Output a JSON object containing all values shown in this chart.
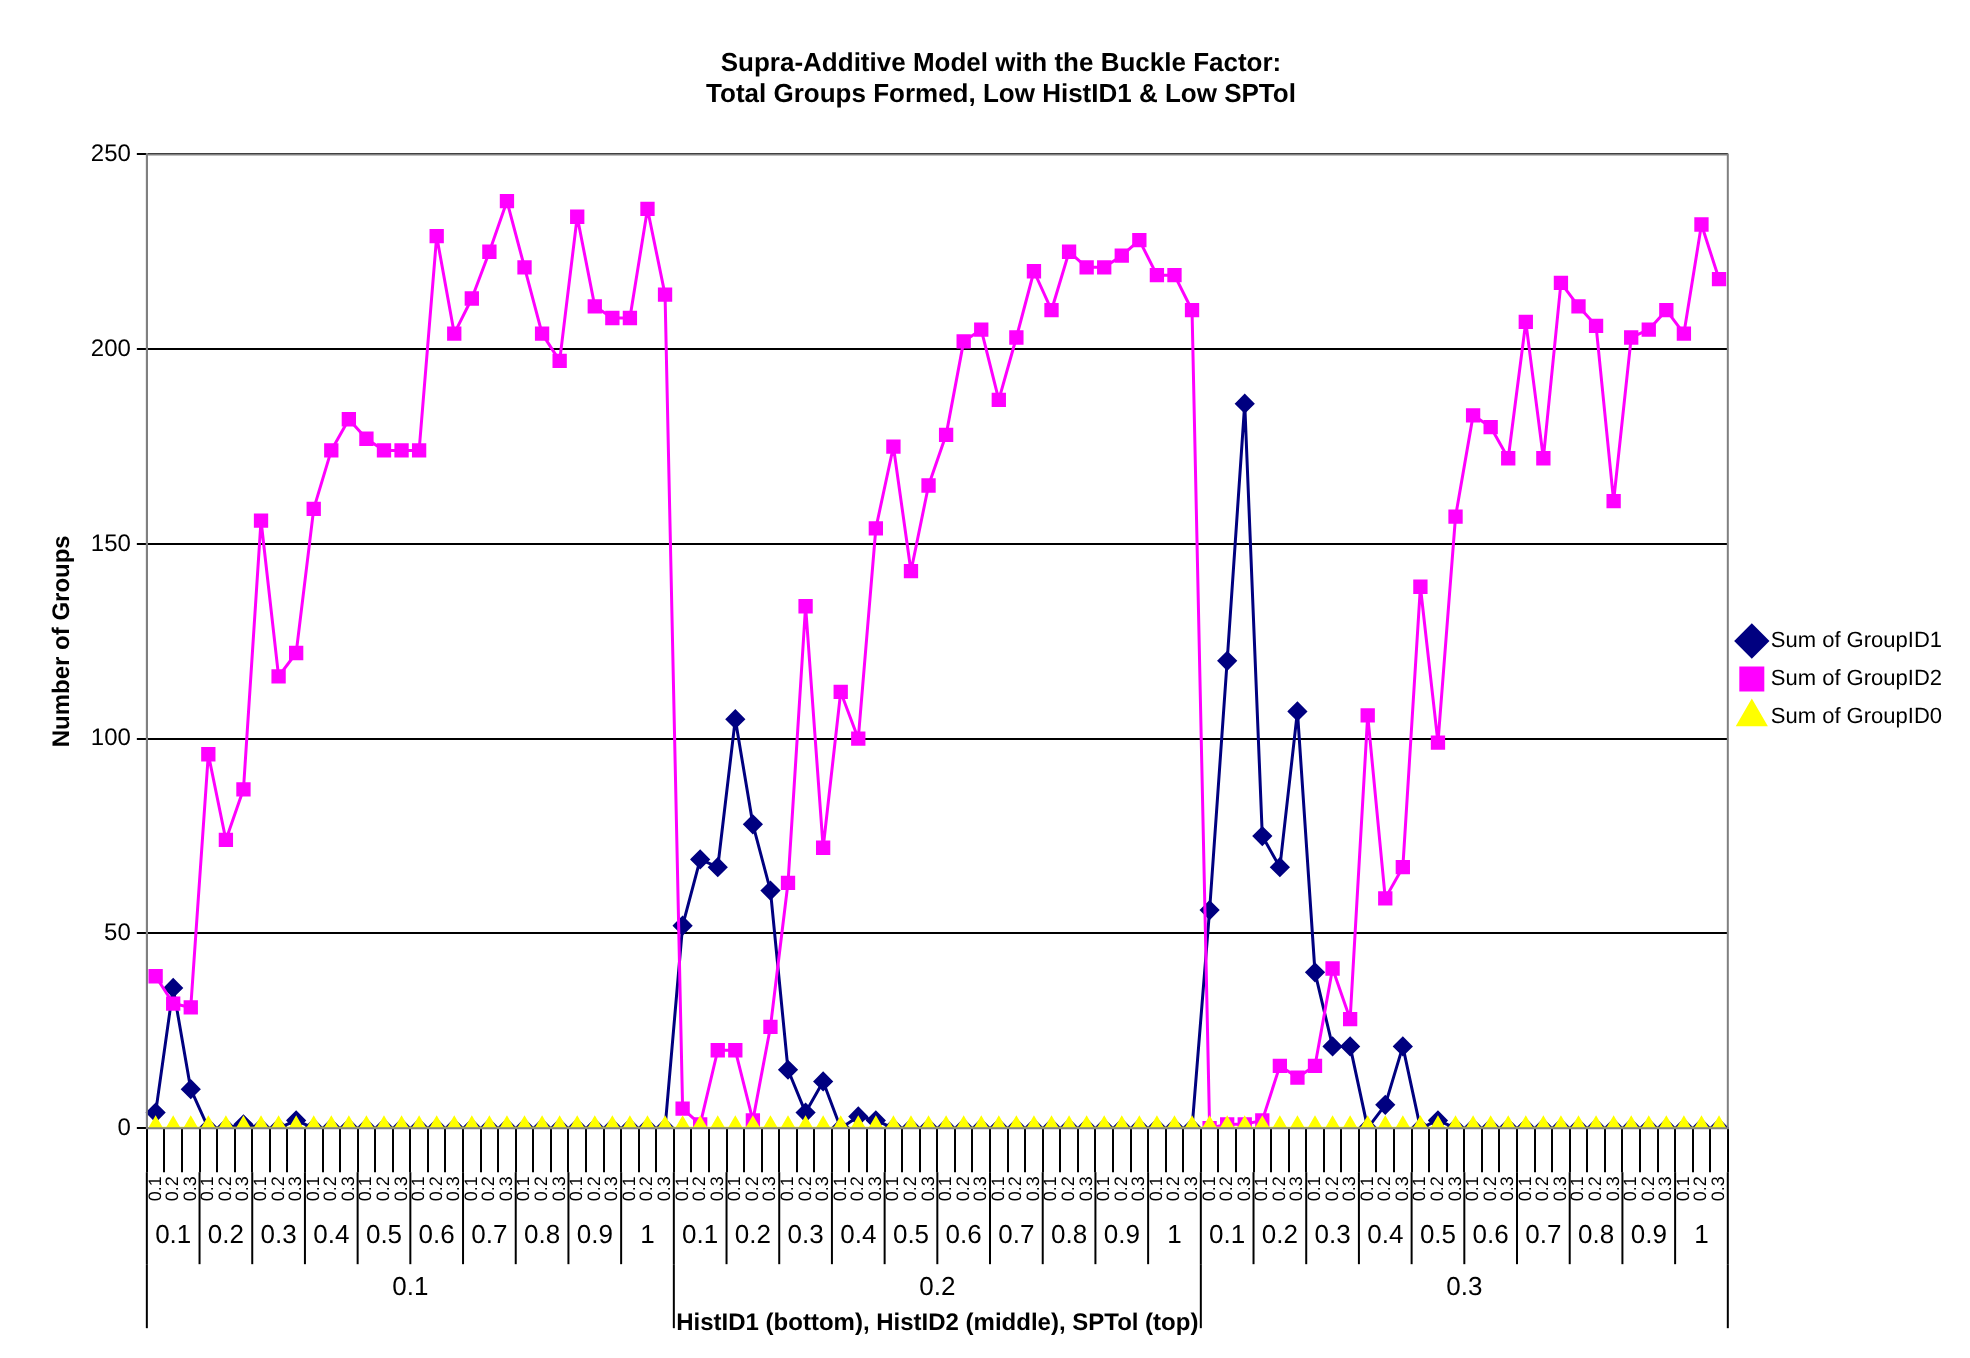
{
  "chart_data": {
    "type": "line",
    "title": "Supra-Additive Model with the Buckle Factor:\nTotal Groups Formed, Low HistID1 & Low SPTol",
    "xlabel": "HistID1 (bottom), HistID2 (middle), SPTol (top)",
    "ylabel": "Number of Groups",
    "categories": [
      "0.1",
      "0.2",
      "0.3",
      "0.1",
      "0.2",
      "0.3",
      "0.1",
      "0.2",
      "0.3",
      "0.1",
      "0.2",
      "0.3",
      "0.1",
      "0.2",
      "0.3",
      "0.1",
      "0.2",
      "0.3",
      "0.1",
      "0.2",
      "0.3",
      "0.1",
      "0.2",
      "0.3",
      "0.1",
      "0.2",
      "0.3",
      "0.1",
      "0.2",
      "0.3",
      "0.1",
      "0.2",
      "0.3",
      "0.1",
      "0.2",
      "0.3",
      "0.1",
      "0.2",
      "0.3",
      "0.1",
      "0.2",
      "0.3",
      "0.1",
      "0.2",
      "0.3",
      "0.1",
      "0.2",
      "0.3",
      "0.1",
      "0.2",
      "0.3",
      "0.1",
      "0.2",
      "0.3",
      "0.1",
      "0.2",
      "0.3",
      "0.1",
      "0.2",
      "0.3",
      "0.1",
      "0.2",
      "0.3",
      "0.1",
      "0.2",
      "0.3",
      "0.1",
      "0.2",
      "0.3",
      "0.1",
      "0.2",
      "0.3",
      "0.1",
      "0.2",
      "0.3",
      "0.1",
      "0.2",
      "0.3",
      "0.1",
      "0.2",
      "0.3",
      "0.1",
      "0.2",
      "0.3",
      "0.1",
      "0.2",
      "0.3",
      "0.1",
      "0.2",
      "0.3"
    ],
    "series": [
      {
        "name": "Sum of GroupID1",
        "color": "#000080",
        "marker": "diamond",
        "values": [
          4,
          36,
          10,
          0,
          0,
          1,
          0,
          0,
          2,
          0,
          0,
          0,
          0,
          0,
          0,
          0,
          0,
          0,
          0,
          0,
          0,
          0,
          0,
          0,
          0,
          0,
          0,
          0,
          0,
          0,
          52,
          69,
          67,
          105,
          78,
          61,
          15,
          4,
          12,
          0,
          3,
          2,
          0,
          0,
          0,
          0,
          0,
          0,
          0,
          0,
          0,
          0,
          0,
          0,
          0,
          0,
          0,
          0,
          0,
          0,
          56,
          120,
          186,
          75,
          67,
          107,
          40,
          21,
          21,
          0,
          6,
          21,
          0,
          2,
          0,
          0,
          0,
          0,
          0,
          0,
          0,
          0,
          0,
          0,
          0,
          0,
          0,
          0,
          0,
          0
        ]
      },
      {
        "name": "Sum of GroupID2",
        "color": "#ff00ff",
        "marker": "square",
        "values": [
          39,
          32,
          31,
          96,
          74,
          87,
          156,
          116,
          122,
          159,
          174,
          182,
          177,
          174,
          174,
          174,
          229,
          204,
          213,
          225,
          238,
          221,
          204,
          197,
          234,
          211,
          208,
          208,
          236,
          214,
          5,
          1,
          20,
          20,
          2,
          26,
          63,
          134,
          72,
          112,
          100,
          154,
          175,
          143,
          165,
          178,
          202,
          205,
          187,
          203,
          220,
          210,
          225,
          221,
          221,
          224,
          228,
          219,
          219,
          210,
          0,
          1,
          1,
          2,
          16,
          13,
          16,
          41,
          28,
          106,
          59,
          67,
          139,
          99,
          157,
          183,
          180,
          172,
          207,
          172,
          217,
          211,
          206,
          161,
          203,
          205,
          210,
          204,
          232,
          218
        ]
      },
      {
        "name": "Sum of GroupID0",
        "color": "#ffff00",
        "marker": "triangle",
        "values": [
          0,
          0,
          0,
          0,
          0,
          0,
          0,
          0,
          0,
          0,
          0,
          0,
          0,
          0,
          0,
          0,
          0,
          0,
          0,
          0,
          0,
          0,
          0,
          0,
          0,
          0,
          0,
          0,
          0,
          0,
          0,
          0,
          0,
          0,
          0,
          0,
          0,
          0,
          0,
          0,
          0,
          0,
          0,
          0,
          0,
          0,
          0,
          0,
          0,
          0,
          0,
          0,
          0,
          0,
          0,
          0,
          0,
          0,
          0,
          0,
          0,
          0,
          0,
          0,
          0,
          0,
          0,
          0,
          0,
          0,
          0,
          0,
          0,
          0,
          0,
          0,
          0,
          0,
          0,
          0,
          0,
          0,
          0,
          0,
          0,
          0,
          0,
          0,
          0,
          0
        ]
      }
    ],
    "ylim": [
      0,
      250
    ],
    "yticks": [
      0,
      50,
      100,
      150,
      200,
      250
    ],
    "grid": "y",
    "legend": "right",
    "annotations": [
      "0.1",
      "0.2",
      "0.3",
      "0.4",
      "0.5",
      "0.6",
      "0.7",
      "0.8",
      "0.9",
      "1",
      "0.1",
      "0.2",
      "0.3",
      "0.4",
      "0.5",
      "0.6",
      "0.7",
      "0.8",
      "0.9",
      "1",
      "0.1",
      "0.2",
      "0.3",
      "0.4",
      "0.5",
      "0.6",
      "0.7",
      "0.8",
      "0.9",
      "1",
      "0.1",
      "0.2",
      "0.3"
    ]
  }
}
